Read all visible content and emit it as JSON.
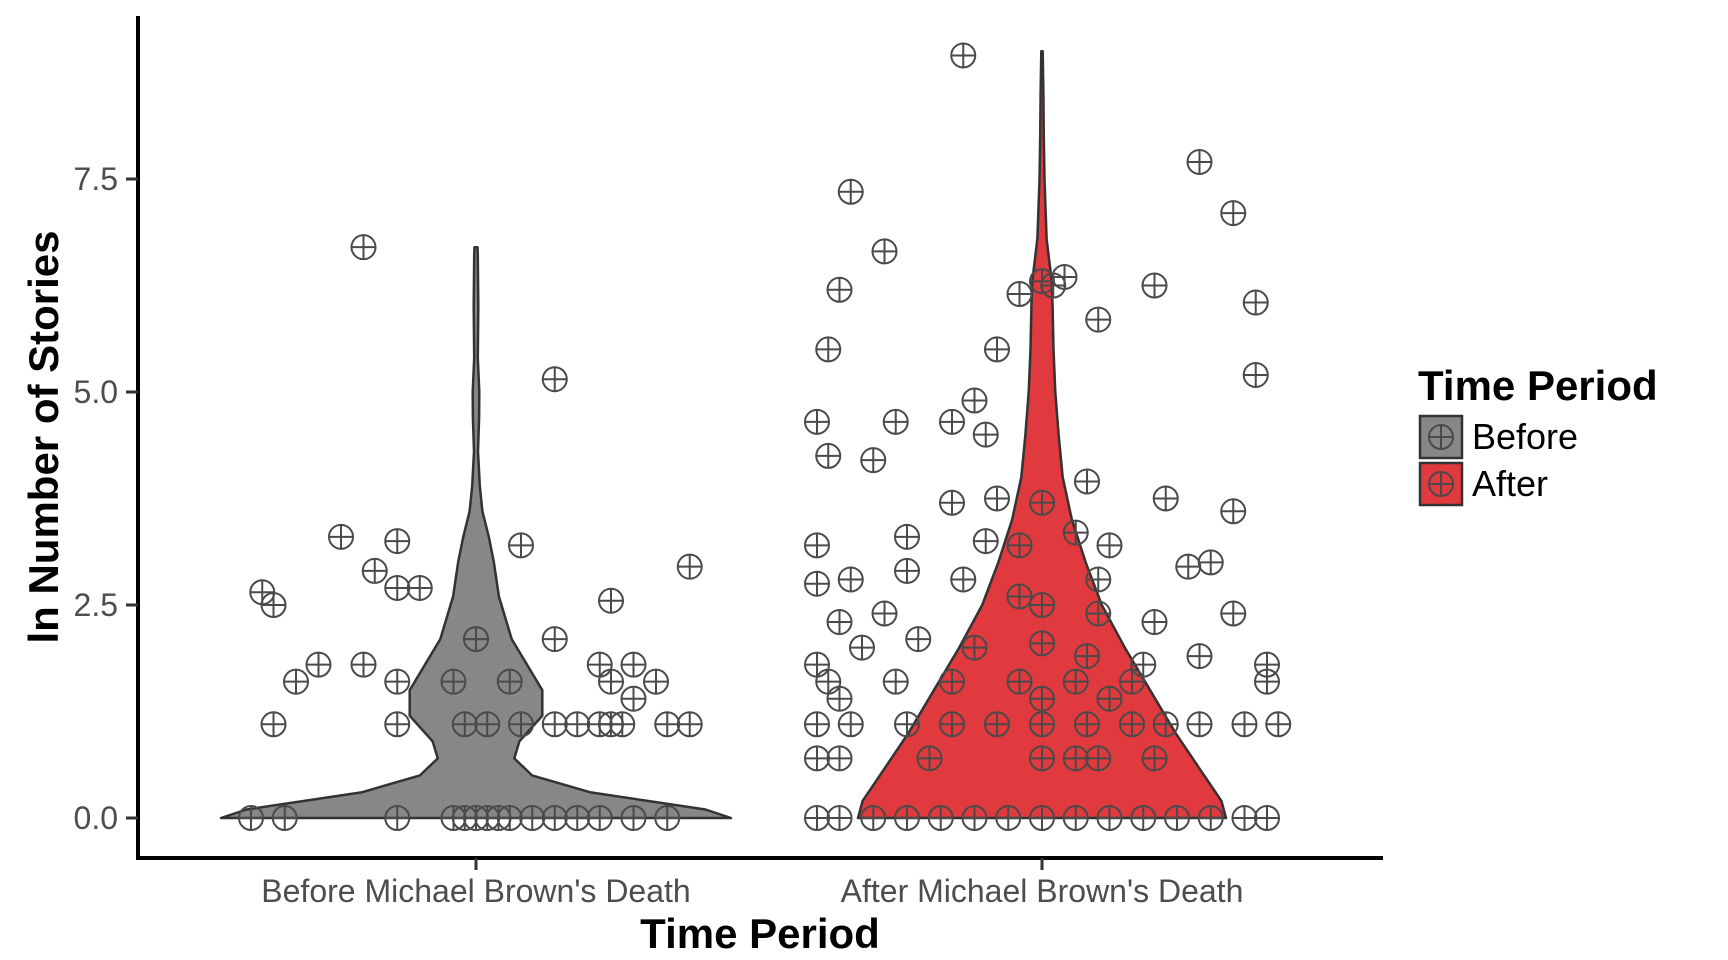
{
  "chart_data": {
    "type": "violin",
    "xlabel": "Time Period",
    "ylabel": "ln Number of Stories",
    "categories": [
      "Before Michael Brown's Death",
      "After Michael Brown's Death"
    ],
    "ylim": [
      -0.35,
      9.3
    ],
    "yticks": [
      0.0,
      2.5,
      5.0,
      7.5
    ],
    "ytick_labels": [
      "0.0",
      "2.5",
      "5.0",
      "7.5"
    ],
    "grid": false,
    "legend": {
      "title": "Time Period",
      "position": "right",
      "entries": [
        {
          "label": "Before",
          "color": "#878787"
        },
        {
          "label": "After",
          "color": "#e0393e"
        }
      ]
    },
    "series": [
      {
        "name": "Before",
        "category_index": 0,
        "color": "#878787",
        "violin_range": [
          0.0,
          6.7
        ],
        "violin_density": [
          [
            0.0,
            1.0
          ],
          [
            0.1,
            0.9
          ],
          [
            0.3,
            0.45
          ],
          [
            0.5,
            0.22
          ],
          [
            0.7,
            0.15
          ],
          [
            0.9,
            0.17
          ],
          [
            1.2,
            0.26
          ],
          [
            1.5,
            0.26
          ],
          [
            1.8,
            0.2
          ],
          [
            2.1,
            0.14
          ],
          [
            2.6,
            0.09
          ],
          [
            3.0,
            0.07
          ],
          [
            3.3,
            0.05
          ],
          [
            3.6,
            0.025
          ],
          [
            3.9,
            0.015
          ],
          [
            4.3,
            0.008
          ],
          [
            4.7,
            0.012
          ],
          [
            5.0,
            0.013
          ],
          [
            5.4,
            0.007
          ],
          [
            6.0,
            0.009
          ],
          [
            6.6,
            0.007
          ],
          [
            6.7,
            0.006
          ]
        ],
        "points": [
          [
            -0.2,
            0.0
          ],
          [
            -0.17,
            0.0
          ],
          [
            -0.07,
            0.0
          ],
          [
            -0.02,
            0.0
          ],
          [
            -0.01,
            0.0
          ],
          [
            0.0,
            0.0
          ],
          [
            0.01,
            0.0
          ],
          [
            0.02,
            0.0
          ],
          [
            0.03,
            0.0
          ],
          [
            0.05,
            0.0
          ],
          [
            0.07,
            0.0
          ],
          [
            0.09,
            0.0
          ],
          [
            0.11,
            0.0
          ],
          [
            0.14,
            0.0
          ],
          [
            0.17,
            0.0
          ],
          [
            -0.18,
            1.1
          ],
          [
            -0.07,
            1.1
          ],
          [
            -0.01,
            1.1
          ],
          [
            0.01,
            1.1
          ],
          [
            0.04,
            1.1
          ],
          [
            0.07,
            1.1
          ],
          [
            0.09,
            1.1
          ],
          [
            0.11,
            1.1
          ],
          [
            0.12,
            1.1
          ],
          [
            0.13,
            1.1
          ],
          [
            0.17,
            1.1
          ],
          [
            0.19,
            1.1
          ],
          [
            -0.1,
            1.8
          ],
          [
            -0.02,
            1.6
          ],
          [
            0.03,
            1.6
          ],
          [
            -0.07,
            1.6
          ],
          [
            -0.16,
            1.6
          ],
          [
            0.12,
            1.6
          ],
          [
            0.16,
            1.6
          ],
          [
            0.14,
            1.8
          ],
          [
            0.11,
            1.8
          ],
          [
            -0.14,
            1.8
          ],
          [
            0.14,
            1.4
          ],
          [
            0.0,
            2.1
          ],
          [
            0.0,
            2.1
          ],
          [
            0.07,
            2.1
          ],
          [
            0.12,
            2.55
          ],
          [
            -0.18,
            2.5
          ],
          [
            -0.19,
            2.65
          ],
          [
            -0.05,
            2.7
          ],
          [
            -0.07,
            2.7
          ],
          [
            -0.09,
            2.9
          ],
          [
            -0.12,
            3.3
          ],
          [
            -0.07,
            3.25
          ],
          [
            0.04,
            3.2
          ],
          [
            0.19,
            2.95
          ],
          [
            0.07,
            5.15
          ],
          [
            -0.1,
            6.7
          ]
        ]
      },
      {
        "name": "After",
        "category_index": 1,
        "color": "#e0393e",
        "violin_range": [
          0.0,
          9.0
        ],
        "violin_density": [
          [
            0.0,
            0.8
          ],
          [
            0.2,
            0.78
          ],
          [
            0.6,
            0.68
          ],
          [
            1.0,
            0.58
          ],
          [
            1.5,
            0.47
          ],
          [
            2.0,
            0.36
          ],
          [
            2.5,
            0.26
          ],
          [
            3.0,
            0.19
          ],
          [
            3.5,
            0.13
          ],
          [
            4.0,
            0.09
          ],
          [
            4.5,
            0.072
          ],
          [
            5.0,
            0.058
          ],
          [
            5.5,
            0.05
          ],
          [
            6.0,
            0.046
          ],
          [
            6.3,
            0.042
          ],
          [
            6.8,
            0.02
          ],
          [
            7.5,
            0.011
          ],
          [
            8.0,
            0.008
          ],
          [
            8.5,
            0.006
          ],
          [
            9.0,
            0.003
          ]
        ],
        "points": [
          [
            -0.2,
            0.0
          ],
          [
            -0.18,
            0.0
          ],
          [
            -0.15,
            0.0
          ],
          [
            -0.12,
            0.0
          ],
          [
            -0.09,
            0.0
          ],
          [
            -0.06,
            0.0
          ],
          [
            -0.03,
            0.0
          ],
          [
            0.0,
            0.0
          ],
          [
            0.03,
            0.0
          ],
          [
            0.06,
            0.0
          ],
          [
            0.09,
            0.0
          ],
          [
            0.12,
            0.0
          ],
          [
            0.15,
            0.0
          ],
          [
            0.18,
            0.0
          ],
          [
            0.2,
            0.0
          ],
          [
            -0.2,
            0.7
          ],
          [
            -0.18,
            0.7
          ],
          [
            -0.1,
            0.7
          ],
          [
            0.0,
            0.7
          ],
          [
            0.03,
            0.7
          ],
          [
            0.05,
            0.7
          ],
          [
            0.1,
            0.7
          ],
          [
            -0.2,
            1.1
          ],
          [
            -0.17,
            1.1
          ],
          [
            -0.12,
            1.1
          ],
          [
            -0.08,
            1.1
          ],
          [
            -0.04,
            1.1
          ],
          [
            0.0,
            1.1
          ],
          [
            0.04,
            1.1
          ],
          [
            0.08,
            1.1
          ],
          [
            0.11,
            1.1
          ],
          [
            0.14,
            1.1
          ],
          [
            0.18,
            1.1
          ],
          [
            0.21,
            1.1
          ],
          [
            -0.19,
            1.6
          ],
          [
            -0.13,
            1.6
          ],
          [
            -0.08,
            1.6
          ],
          [
            -0.02,
            1.6
          ],
          [
            0.03,
            1.6
          ],
          [
            0.08,
            1.6
          ],
          [
            0.2,
            1.6
          ],
          [
            -0.18,
            1.4
          ],
          [
            0.0,
            1.4
          ],
          [
            0.06,
            1.4
          ],
          [
            -0.2,
            1.8
          ],
          [
            -0.16,
            2.0
          ],
          [
            -0.11,
            2.1
          ],
          [
            -0.06,
            2.0
          ],
          [
            0.0,
            2.05
          ],
          [
            0.04,
            1.9
          ],
          [
            0.09,
            1.8
          ],
          [
            0.14,
            1.9
          ],
          [
            0.2,
            1.8
          ],
          [
            -0.18,
            2.3
          ],
          [
            -0.14,
            2.4
          ],
          [
            -0.02,
            2.6
          ],
          [
            0.05,
            2.4
          ],
          [
            0.1,
            2.3
          ],
          [
            0.17,
            2.4
          ],
          [
            -0.2,
            2.75
          ],
          [
            -0.17,
            2.8
          ],
          [
            -0.12,
            2.9
          ],
          [
            -0.07,
            2.8
          ],
          [
            0.0,
            2.5
          ],
          [
            0.05,
            2.8
          ],
          [
            0.13,
            2.95
          ],
          [
            0.15,
            3.0
          ],
          [
            -0.2,
            3.2
          ],
          [
            -0.12,
            3.3
          ],
          [
            -0.05,
            3.25
          ],
          [
            -0.02,
            3.2
          ],
          [
            0.03,
            3.35
          ],
          [
            0.06,
            3.2
          ],
          [
            -0.08,
            3.7
          ],
          [
            -0.04,
            3.75
          ],
          [
            0.0,
            3.7
          ],
          [
            0.04,
            3.95
          ],
          [
            0.11,
            3.75
          ],
          [
            0.17,
            3.6
          ],
          [
            -0.15,
            4.2
          ],
          [
            -0.19,
            4.25
          ],
          [
            -0.13,
            4.65
          ],
          [
            -0.2,
            4.65
          ],
          [
            -0.08,
            4.65
          ],
          [
            -0.05,
            4.5
          ],
          [
            -0.06,
            4.9
          ],
          [
            -0.19,
            5.5
          ],
          [
            -0.04,
            5.5
          ],
          [
            0.05,
            5.85
          ],
          [
            0.19,
            6.05
          ],
          [
            0.19,
            5.2
          ],
          [
            0.1,
            6.25
          ],
          [
            -0.02,
            6.15
          ],
          [
            0.0,
            6.3
          ],
          [
            0.01,
            6.25
          ],
          [
            0.02,
            6.35
          ],
          [
            -0.18,
            6.2
          ],
          [
            -0.14,
            6.65
          ],
          [
            -0.17,
            7.35
          ],
          [
            0.14,
            7.7
          ],
          [
            0.17,
            7.1
          ],
          [
            -0.07,
            8.95
          ]
        ]
      }
    ]
  }
}
